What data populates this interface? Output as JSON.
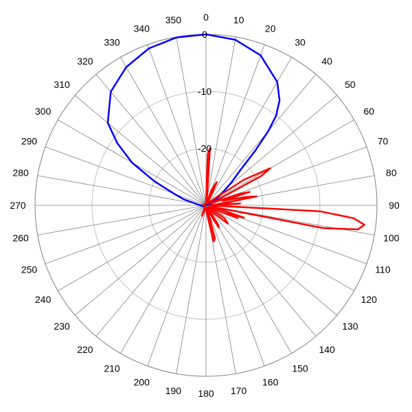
{
  "chart_data": {
    "type": "line",
    "subtype": "polar",
    "angle_labels": [
      "0",
      "10",
      "20",
      "30",
      "40",
      "50",
      "60",
      "70",
      "80",
      "90",
      "100",
      "110",
      "120",
      "130",
      "140",
      "150",
      "160",
      "170",
      "180",
      "190",
      "200",
      "210",
      "220",
      "230",
      "240",
      "250",
      "260",
      "270",
      "280",
      "290",
      "300",
      "310",
      "320",
      "330",
      "340",
      "350"
    ],
    "radial_rings": [
      0,
      -10,
      -20,
      -30
    ],
    "radial_ring_labels": [
      "0",
      "-10",
      "-20"
    ],
    "r_range": [
      -30,
      0
    ],
    "angle_direction": "clockwise",
    "zero_angle": "top",
    "grid": true,
    "series": [
      {
        "color": "#0000ff",
        "points": [
          [
            0,
            0
          ],
          [
            10,
            -0.5
          ],
          [
            20,
            -2
          ],
          [
            30,
            -5
          ],
          [
            35,
            -7.5
          ],
          [
            38,
            -10
          ],
          [
            40,
            -13
          ],
          [
            42,
            -17
          ],
          [
            44,
            -21
          ],
          [
            48,
            -24
          ],
          [
            55,
            -27
          ],
          [
            70,
            -29
          ],
          [
            90,
            -30
          ],
          [
            250,
            -29.5
          ],
          [
            270,
            -29
          ],
          [
            280,
            -28
          ],
          [
            285,
            -26
          ],
          [
            290,
            -24
          ],
          [
            295,
            -20
          ],
          [
            300,
            -15
          ],
          [
            305,
            -11
          ],
          [
            310,
            -7.5
          ],
          [
            320,
            -4
          ],
          [
            330,
            -2
          ],
          [
            340,
            -0.7
          ],
          [
            350,
            -0.1
          ],
          [
            360,
            0
          ]
        ]
      },
      {
        "color": "#ff0000",
        "points": [
          [
            0,
            -29.5
          ],
          [
            2,
            -21
          ],
          [
            4,
            -20
          ],
          [
            6,
            -28
          ],
          [
            10,
            -29.2
          ],
          [
            15,
            -29.5
          ],
          [
            20,
            -27
          ],
          [
            25,
            -25.5
          ],
          [
            30,
            -29
          ],
          [
            45,
            -29.5
          ],
          [
            52,
            -28
          ],
          [
            56,
            -22
          ],
          [
            60,
            -17
          ],
          [
            62,
            -19
          ],
          [
            64,
            -27
          ],
          [
            68,
            -29
          ],
          [
            71,
            -24
          ],
          [
            73,
            -22
          ],
          [
            75,
            -27
          ],
          [
            78,
            -23
          ],
          [
            80,
            -21
          ],
          [
            82,
            -26
          ],
          [
            85,
            -28
          ],
          [
            87,
            -24
          ],
          [
            88,
            -29
          ],
          [
            91,
            -29.5
          ],
          [
            93,
            -10
          ],
          [
            95,
            -4
          ],
          [
            97,
            -2
          ],
          [
            99,
            -3
          ],
          [
            101,
            -9
          ],
          [
            103,
            -29
          ],
          [
            105,
            -28
          ],
          [
            108,
            -23
          ],
          [
            110,
            -26
          ],
          [
            112,
            -24
          ],
          [
            114,
            -27
          ],
          [
            116,
            -29
          ],
          [
            120,
            -29.5
          ],
          [
            125,
            -26
          ],
          [
            130,
            -25
          ],
          [
            135,
            -28
          ],
          [
            140,
            -29.5
          ],
          [
            148,
            -26
          ],
          [
            150,
            -25.5
          ],
          [
            152,
            -27
          ],
          [
            157,
            -29.5
          ],
          [
            165,
            -24
          ],
          [
            168,
            -23.5
          ],
          [
            172,
            -28
          ],
          [
            178,
            -29.5
          ],
          [
            190,
            -29.5
          ],
          [
            200,
            -28
          ],
          [
            210,
            -29.5
          ],
          [
            220,
            -29.7
          ],
          [
            240,
            -29.8
          ],
          [
            260,
            -29.8
          ],
          [
            275,
            -29.5
          ],
          [
            290,
            -29.7
          ],
          [
            310,
            -29.8
          ],
          [
            330,
            -29.7
          ],
          [
            350,
            -29.8
          ],
          [
            360,
            -29.5
          ]
        ]
      }
    ]
  }
}
